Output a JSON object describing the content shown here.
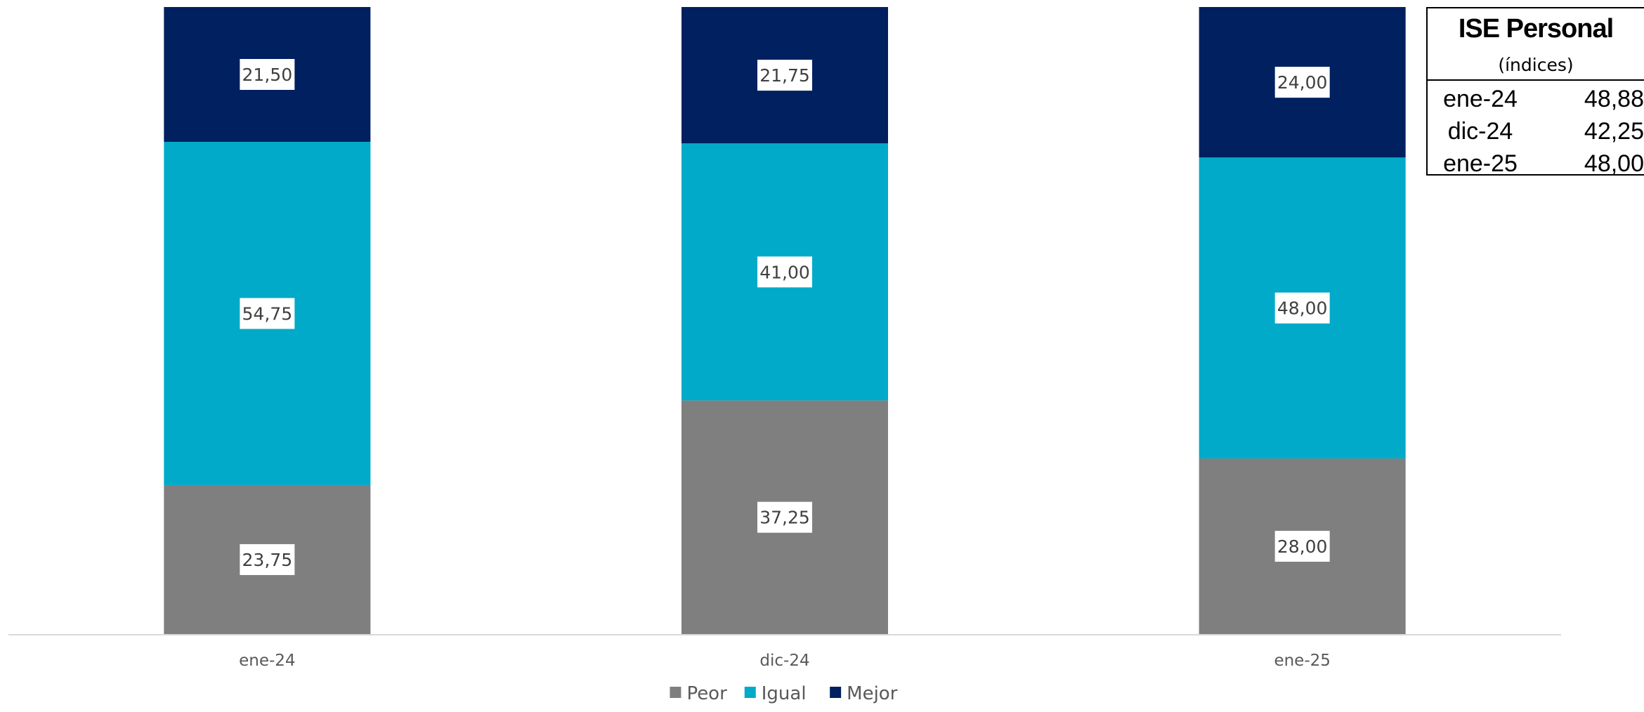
{
  "chart_data": {
    "type": "bar",
    "stacked": true,
    "categories": [
      "ene-24",
      "dic-24",
      "ene-25"
    ],
    "series": [
      {
        "name": "Peor",
        "color": "#7f7f7f",
        "values": [
          23.75,
          37.25,
          28.0
        ]
      },
      {
        "name": "Igual",
        "color": "#00aac8",
        "values": [
          54.75,
          41.0,
          48.0
        ]
      },
      {
        "name": "Mejor",
        "color": "#002060",
        "values": [
          21.5,
          21.75,
          24.0
        ]
      }
    ],
    "ylim": [
      0,
      100
    ],
    "legend_position": "bottom",
    "grid": false
  },
  "index_table": {
    "title": "ISE Personal",
    "subtitle": "(índices)",
    "rows": [
      {
        "label": "ene-24",
        "value": "48,88"
      },
      {
        "label": "dic-24",
        "value": "42,25"
      },
      {
        "label": "ene-25",
        "value": "48,00"
      }
    ]
  }
}
